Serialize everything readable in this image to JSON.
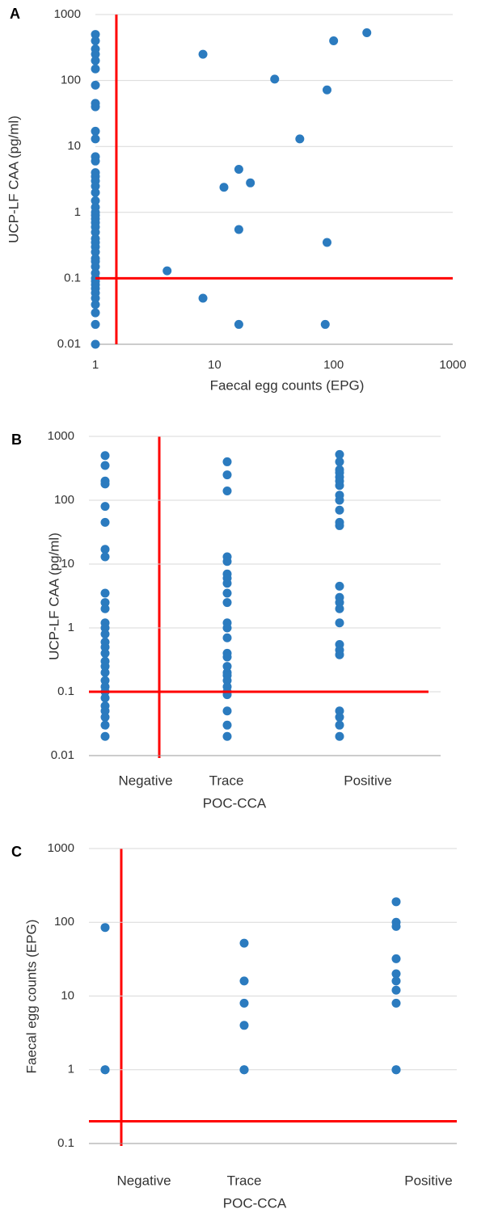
{
  "chart_data": [
    {
      "type": "scatter",
      "label": "A",
      "ylabel": "UCP-LF CAA (pg/ml)",
      "xlabel": "Faecal egg counts (EPG)",
      "log_x": true,
      "log_y": true,
      "grid": true,
      "color": "#2b7bbf",
      "xlim": [
        1,
        1000
      ],
      "xticks": [
        1,
        10,
        100,
        1000
      ],
      "ylim": [
        0.01,
        1000
      ],
      "yticks": [
        0.01,
        0.1,
        1,
        10,
        100,
        1000
      ],
      "x": [
        1,
        1,
        1,
        1,
        1,
        1,
        1,
        1,
        1,
        1,
        1,
        1,
        1,
        1,
        1,
        1,
        1,
        1,
        1,
        1,
        1,
        1,
        1,
        1,
        1,
        1,
        1,
        1,
        1,
        1,
        1,
        1,
        1,
        1,
        1,
        1,
        1,
        1,
        1,
        1,
        1,
        1,
        1,
        1,
        8,
        32,
        100,
        190,
        88,
        52,
        16,
        12,
        20,
        16,
        88,
        4,
        8,
        16,
        85
      ],
      "y": [
        500,
        400,
        300,
        250,
        200,
        150,
        85,
        45,
        40,
        17,
        13,
        7,
        6,
        4,
        3.5,
        3,
        2.5,
        2,
        1.5,
        1.2,
        1,
        0.9,
        0.8,
        0.7,
        0.6,
        0.5,
        0.4,
        0.35,
        0.3,
        0.25,
        0.2,
        0.18,
        0.15,
        0.12,
        0.1,
        0.09,
        0.08,
        0.07,
        0.06,
        0.05,
        0.04,
        0.03,
        0.02,
        0.01,
        250,
        105,
        400,
        530,
        72,
        13,
        4.5,
        2.4,
        2.8,
        0.55,
        0.35,
        0.13,
        0.05,
        0.02,
        0.02
      ],
      "reference_lines": [
        {
          "axis": "x",
          "value": 1.5
        },
        {
          "axis": "y",
          "value": 0.1
        }
      ],
      "reference_color": "#ff0000"
    },
    {
      "type": "category_scatter",
      "label": "B",
      "ylabel": "UCP-LF CAA (pg/ml)",
      "xlabel": "POC-CCA",
      "log_y": true,
      "grid": true,
      "color": "#2b7bbf",
      "categories": [
        "Negative",
        "Trace",
        "Positive"
      ],
      "ylim": [
        0.01,
        1000
      ],
      "yticks": [
        0.01,
        0.1,
        1,
        10,
        100,
        1000
      ],
      "values": [
        [
          500,
          350,
          200,
          180,
          80,
          45,
          17,
          13,
          3.5,
          2.5,
          2,
          1.2,
          1,
          0.8,
          0.6,
          0.5,
          0.4,
          0.3,
          0.25,
          0.2,
          0.15,
          0.12,
          0.1,
          0.08,
          0.06,
          0.05,
          0.04,
          0.03,
          0.02
        ],
        [
          400,
          250,
          140,
          13,
          11,
          7,
          6,
          5,
          3.5,
          2.5,
          1.2,
          1,
          0.7,
          0.4,
          0.35,
          0.25,
          0.2,
          0.18,
          0.15,
          0.12,
          0.1,
          0.09,
          0.05,
          0.03,
          0.02
        ],
        [
          520,
          400,
          300,
          270,
          230,
          200,
          170,
          120,
          100,
          70,
          45,
          40,
          4.5,
          3,
          2.5,
          2,
          1.2,
          0.55,
          0.45,
          0.38,
          0.05,
          0.04,
          0.03,
          0.02
        ]
      ],
      "reference_lines": [
        {
          "axis": "y",
          "value": 0.1
        }
      ],
      "reference_color": "#ff0000"
    },
    {
      "type": "category_scatter",
      "label": "C",
      "ylabel": "Faecal egg counts (EPG)",
      "xlabel": "POC-CCA",
      "log_y": true,
      "grid": true,
      "color": "#2b7bbf",
      "categories": [
        "Negative",
        "Trace",
        "Positive"
      ],
      "ylim": [
        0.1,
        1000
      ],
      "yticks": [
        0.1,
        1,
        10,
        100,
        1000
      ],
      "values": [
        [
          85,
          1,
          1
        ],
        [
          52,
          16,
          8,
          4,
          1,
          1
        ],
        [
          190,
          100,
          88,
          32,
          20,
          16,
          12,
          8,
          1,
          1
        ]
      ],
      "reference_lines": [
        {
          "axis": "y",
          "value": 0.2
        }
      ],
      "reference_color": "#ff0000"
    }
  ]
}
